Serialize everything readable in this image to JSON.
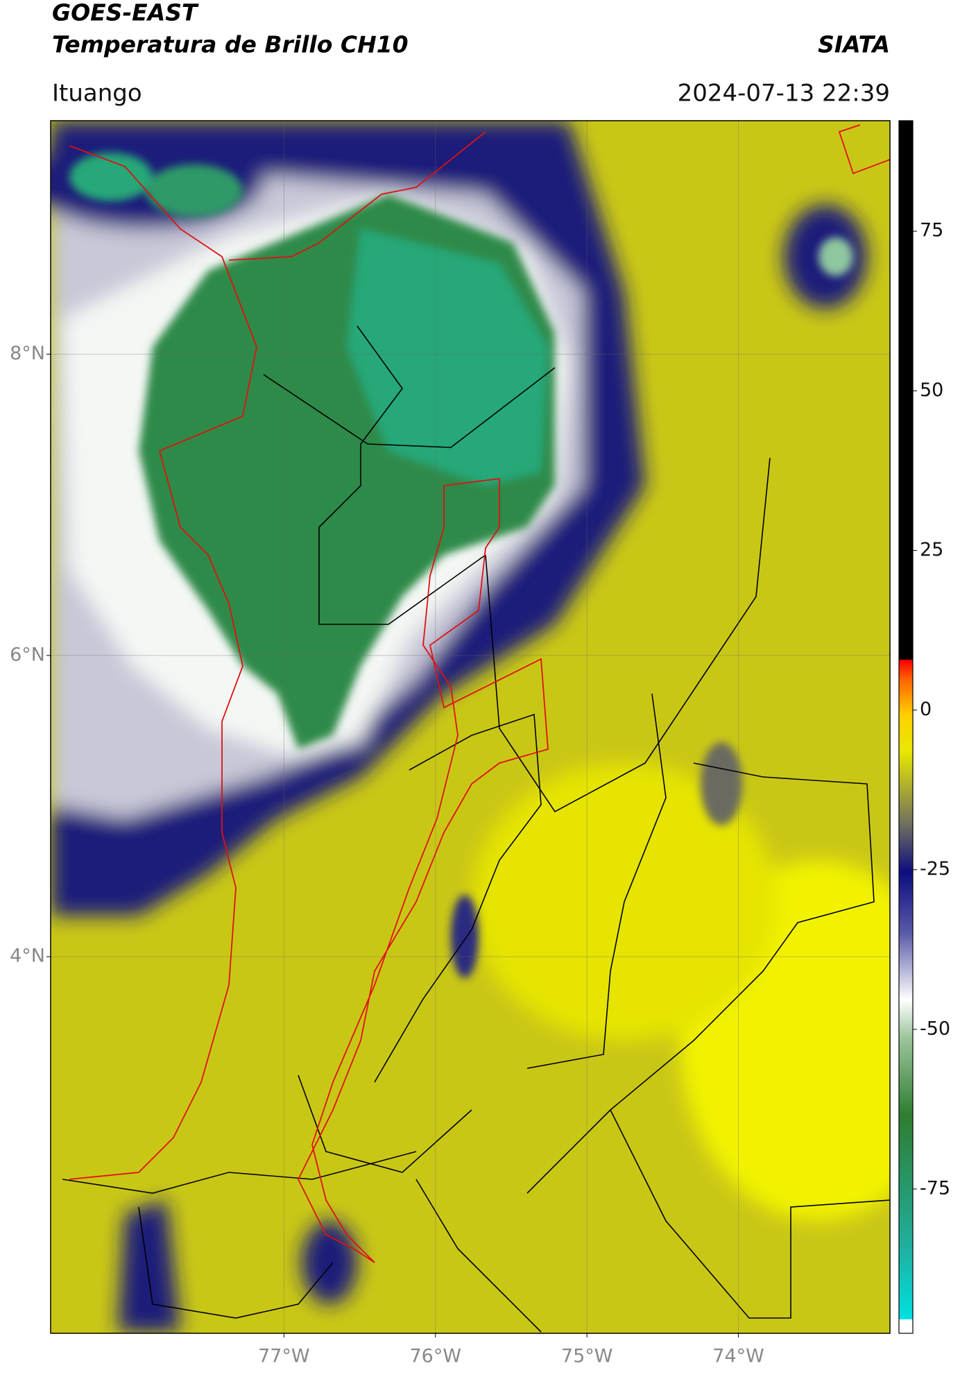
{
  "header": {
    "title": "GOES-EAST",
    "subtitle": "Temperatura de Brillo CH10",
    "source": "SIATA",
    "region": "Ituango",
    "timestamp": "2024-07-13 22:39"
  },
  "map": {
    "lonlim": [
      -78.54,
      -73.0
    ],
    "latlim": [
      1.5,
      9.55
    ],
    "lonticks": [
      {
        "value": -77,
        "label": "77°W"
      },
      {
        "value": -76,
        "label": "76°W"
      },
      {
        "value": -75,
        "label": "75°W"
      },
      {
        "value": -74,
        "label": "74°W"
      }
    ],
    "latticks": [
      {
        "value": 8,
        "label": "8°N"
      },
      {
        "value": 6,
        "label": "6°N"
      },
      {
        "value": 4,
        "label": "4°N"
      }
    ],
    "grid": true
  },
  "colorbar": {
    "lim": [
      -97.6,
      92.3
    ],
    "ticks": [
      75,
      50,
      25,
      0,
      -25,
      -50,
      -75
    ]
  }
}
